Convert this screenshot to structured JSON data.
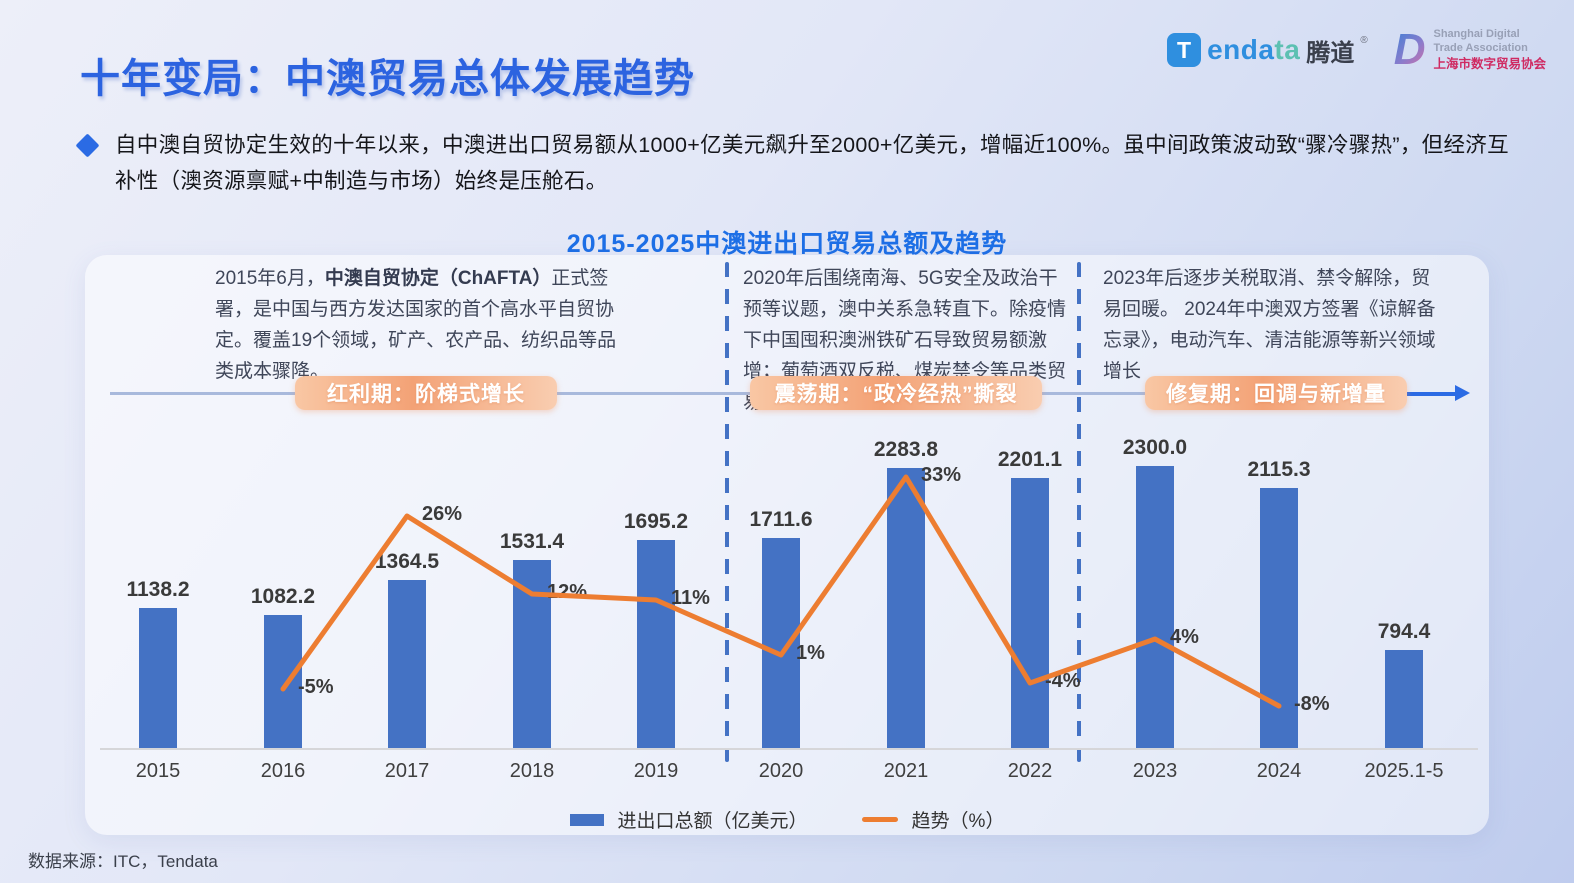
{
  "header": {
    "title": "十年变局：中澳贸易总体发展趋势"
  },
  "logos": {
    "tendata": {
      "icon_letter": "T",
      "brand_blue": "enda",
      "brand_teal": "ta",
      "cn": "腾道",
      "reg": "®"
    },
    "sdta": {
      "letter": "D",
      "line1": "Shanghai Digital",
      "line2": "Trade Association",
      "line3": "上海市数字贸易协会"
    }
  },
  "intro": {
    "text": "自中澳自贸协定生效的十年以来，中澳进出口贸易额从1000+亿美元飙升至2000+亿美元，增幅近100%。虽中间政策波动致“骤冷骤热”，但经济互补性（澳资源禀赋+中制造与市场）始终是压舱石。"
  },
  "chart_title": "2015-2025中澳进出口贸易总额及趋势",
  "periods": [
    {
      "desc_pre": "2015年6月，",
      "desc_bold": "中澳自贸协定（ChAFTA）",
      "desc_post": "正式签署，是中国与西方发达国家的首个高水平自贸协定。覆盖19个领域，矿产、农产品、纺织品等品类成本骤降。",
      "pill": "红利期：阶梯式增长"
    },
    {
      "desc_pre": "",
      "desc_bold": "",
      "desc_post": "2020年后围绕南海、5G安全及政治干预等议题，澳中关系急转直下。除疫情下中国囤积澳洲铁矿石导致贸易额激增；葡萄酒双反税、煤炭禁令等品类贸易骤跌",
      "pill": "震荡期：“政冷经热”撕裂"
    },
    {
      "desc_pre": "",
      "desc_bold": "",
      "desc_post": "2023年后逐步关税取消、禁令解除，贸易回暖。 2024年中澳双方签署《谅解备忘录》，电动汽车、清洁能源等新兴领域增长",
      "pill": "修复期：回调与新增量"
    }
  ],
  "chart_data": {
    "type": "bar",
    "title": "2015-2025中澳进出口贸易总额及趋势",
    "categories": [
      "2015",
      "2016",
      "2017",
      "2018",
      "2019",
      "2020",
      "2021",
      "2022",
      "2023",
      "2024",
      "2025.1-5"
    ],
    "series": [
      {
        "name": "进出口总额（亿美元）",
        "type": "bar",
        "color": "#4472C4",
        "values": [
          1138.2,
          1082.2,
          1364.5,
          1531.4,
          1695.2,
          1711.6,
          2283.8,
          2201.1,
          2300.0,
          2115.3,
          794.4
        ]
      },
      {
        "name": "趋势（%）",
        "type": "line",
        "color": "#ED7D31",
        "values": [
          null,
          -5,
          26,
          12,
          11,
          1,
          33,
          -4,
          4,
          -8,
          null
        ],
        "point_labels": [
          null,
          "-5%",
          "26%",
          "12%",
          "11%",
          "1%",
          "33%",
          "-4%",
          "4%",
          "-8%",
          null
        ]
      }
    ],
    "ylabel": "",
    "xlabel": "",
    "grid": false,
    "legend_position": "bottom"
  },
  "legend": [
    {
      "label": "进出口总额（亿美元）",
      "color": "#4472C4"
    },
    {
      "label": "趋势（%）",
      "color": "#ED7D31"
    }
  ],
  "footer": {
    "source": "数据来源：ITC，Tendata"
  },
  "colors": {
    "title_blue": "#2c63e0",
    "chart_title_blue": "#1d6fe6",
    "bar_blue": "#4472C4",
    "trend_orange": "#ED7D31",
    "pill_orange": "#f3a276",
    "dashed_separator_blue": "#4472C4",
    "timeline_arrow_blue": "#2b6be4",
    "sdta_pink": "#cf2a62"
  }
}
